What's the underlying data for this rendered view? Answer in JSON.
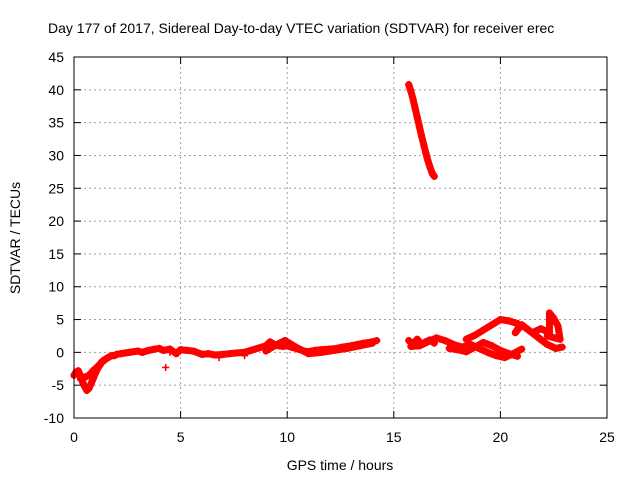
{
  "chart_data": {
    "type": "scatter",
    "title": "Day 177 of 2017, Sidereal Day-to-day VTEC variation (SDTVAR) for receiver erec",
    "xlabel": "GPS time / hours",
    "ylabel": "SDTVAR / TECUs",
    "xlim": [
      0,
      25
    ],
    "ylim": [
      -10,
      45
    ],
    "xticks": [
      0,
      5,
      10,
      15,
      20,
      25
    ],
    "yticks": [
      -10,
      -5,
      0,
      5,
      10,
      15,
      20,
      25,
      30,
      35,
      40,
      45
    ],
    "grid": true,
    "marker": "+",
    "color": "#ff0000",
    "series": [
      {
        "name": "SDTVAR",
        "x": [
          0.0,
          0.1,
          0.2,
          0.3,
          0.4,
          0.5,
          0.6,
          0.7,
          0.8,
          0.9,
          1.0,
          1.1,
          1.2,
          1.3,
          1.4,
          1.5,
          1.6,
          1.7,
          1.8,
          1.9,
          2.0,
          2.2,
          2.4,
          2.6,
          2.8,
          3.0,
          3.2,
          3.5,
          3.8,
          4.0,
          4.2,
          4.5,
          4.8,
          5.0,
          5.3,
          5.6,
          6.0,
          6.3,
          6.6,
          7.0,
          7.3,
          7.6,
          8.0,
          8.3,
          8.6,
          9.0,
          9.2,
          9.4,
          9.6,
          9.8,
          10.0,
          10.2,
          10.5,
          10.8,
          11.0,
          11.3,
          11.6,
          12.0,
          12.3,
          12.6,
          13.0,
          13.3,
          13.6,
          14.0,
          14.2,
          0.3,
          0.5,
          0.7,
          0.9,
          1.1,
          1.3,
          1.5,
          4.5,
          6.8,
          8.0,
          9.0,
          9.4,
          9.9,
          10.4,
          11.0,
          11.6,
          12.2,
          12.8,
          13.4,
          14.0,
          15.7,
          15.8,
          15.9,
          16.0,
          16.1,
          16.2,
          16.3,
          16.4,
          16.5,
          16.6,
          16.7,
          16.8,
          16.9,
          15.7,
          15.9,
          16.1,
          16.3,
          16.5,
          16.7,
          16.9,
          15.8,
          16.2,
          16.6,
          17.0,
          17.4,
          17.8,
          18.2,
          18.6,
          19.0,
          19.4,
          19.8,
          20.2,
          20.6,
          21.0,
          17.6,
          18.0,
          18.4,
          18.8,
          19.2,
          19.6,
          20.0,
          20.4,
          20.8,
          18.4,
          18.8,
          19.2,
          19.6,
          20.0,
          20.4,
          20.8,
          20.9,
          20.7,
          21.0,
          21.4,
          21.8,
          22.2,
          22.6,
          22.9,
          21.5,
          21.9,
          22.3,
          22.3,
          22.5,
          22.7,
          22.8,
          22.2,
          4.3
        ],
        "y": [
          -3.5,
          -3.0,
          -2.8,
          -3.5,
          -4.5,
          -5.2,
          -5.8,
          -5.5,
          -4.8,
          -4.0,
          -3.2,
          -2.5,
          -2.0,
          -1.5,
          -1.2,
          -1.0,
          -0.8,
          -0.6,
          -0.5,
          -0.5,
          -0.3,
          -0.2,
          -0.1,
          0.0,
          0.1,
          0.2,
          0.0,
          0.3,
          0.5,
          0.6,
          0.3,
          0.5,
          -0.2,
          0.4,
          0.3,
          0.2,
          -0.3,
          -0.2,
          -0.4,
          -0.3,
          -0.2,
          -0.1,
          0.0,
          0.3,
          0.6,
          1.0,
          1.6,
          1.2,
          1.0,
          0.9,
          1.0,
          0.8,
          0.5,
          0.2,
          0.1,
          0.3,
          0.4,
          0.5,
          0.6,
          0.8,
          1.0,
          1.2,
          1.4,
          1.6,
          1.8,
          -4.0,
          -3.8,
          -3.5,
          -2.8,
          -2.2,
          -1.5,
          -1.0,
          0.0,
          -0.8,
          -0.5,
          0.2,
          1.0,
          1.8,
          0.8,
          -0.2,
          0.0,
          0.3,
          0.6,
          1.0,
          1.4,
          40.8,
          39.8,
          38.6,
          37.2,
          35.8,
          34.4,
          33.0,
          31.7,
          30.4,
          29.2,
          28.2,
          27.3,
          26.8,
          1.8,
          1.3,
          2.0,
          1.2,
          1.6,
          1.9,
          1.4,
          0.9,
          1.0,
          1.6,
          2.2,
          1.8,
          1.2,
          0.8,
          1.2,
          0.6,
          0.0,
          -0.5,
          -0.8,
          -0.2,
          0.5,
          0.6,
          0.4,
          0.1,
          0.8,
          1.5,
          1.0,
          0.3,
          -0.2,
          -0.6,
          2.0,
          2.6,
          3.4,
          4.2,
          5.0,
          4.8,
          4.4,
          4.0,
          3.0,
          4.2,
          3.2,
          2.2,
          1.2,
          0.6,
          0.8,
          3.0,
          3.6,
          3.0,
          6.0,
          5.2,
          4.0,
          2.0,
          2.5,
          -2.3
        ]
      }
    ]
  }
}
